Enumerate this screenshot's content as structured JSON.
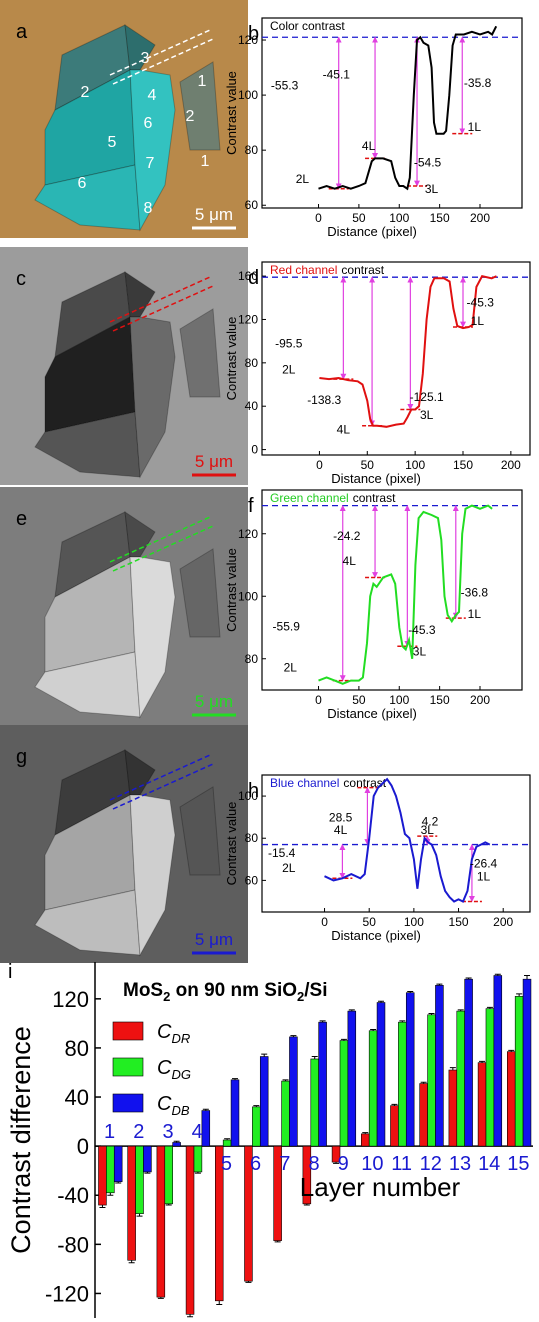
{
  "images": [
    {
      "label": "a",
      "scale_bar": "5 μm",
      "layer_labels": [
        "3",
        "2",
        "4",
        "1",
        "6",
        "2",
        "5",
        "7",
        "1",
        "6",
        "8"
      ]
    },
    {
      "label": "c",
      "scale_bar": "5 μm"
    },
    {
      "label": "e",
      "scale_bar": "5 μm"
    },
    {
      "label": "g",
      "scale_bar": "5 μm"
    }
  ],
  "chart_data": [
    {
      "type": "line",
      "panel": "b",
      "title_parts": [
        {
          "text": "Color contrast"
        }
      ],
      "color": "#000000",
      "xlabel": "Distance (pixel)",
      "ylabel": "Contrast value",
      "x": [
        0,
        10,
        20,
        30,
        40,
        50,
        58,
        62,
        66,
        70,
        80,
        90,
        95,
        100,
        105,
        110,
        113,
        118,
        122,
        126,
        130,
        136,
        140,
        143,
        146,
        150,
        155,
        158,
        162,
        166,
        170,
        180,
        190,
        200,
        210,
        215,
        220
      ],
      "values": [
        66,
        67,
        66,
        67,
        66,
        67,
        68,
        72,
        76,
        77,
        77,
        76,
        70,
        67,
        67,
        66,
        70,
        100,
        120,
        121,
        119,
        118,
        110,
        90,
        86,
        86,
        86,
        87,
        100,
        118,
        122,
        122,
        123,
        122,
        123,
        122,
        125
      ],
      "reference": 121,
      "xlim": [
        -70,
        252
      ],
      "ylim": [
        59,
        128
      ],
      "xticks": [
        0,
        50,
        100,
        150,
        200
      ],
      "yticks": [
        60,
        80,
        100,
        120
      ],
      "annotations": [
        "-55.3",
        "-45.1",
        "4L",
        "2L",
        "-54.5",
        "3L",
        "-35.8",
        "1L"
      ]
    },
    {
      "type": "line",
      "panel": "d",
      "title_parts": [
        {
          "text": "Red channel",
          "color": "#e01010"
        },
        {
          "text": "contrast"
        }
      ],
      "color": "#e01010",
      "xlabel": "Distance (pixel)",
      "ylabel": "Contrast value",
      "x": [
        0,
        10,
        20,
        30,
        40,
        45,
        50,
        53,
        56,
        60,
        70,
        80,
        88,
        92,
        96,
        100,
        104,
        108,
        112,
        116,
        120,
        130,
        136,
        140,
        144,
        150,
        156,
        160,
        164,
        170,
        180,
        185
      ],
      "values": [
        66,
        65,
        66,
        64,
        63,
        60,
        45,
        28,
        22,
        22,
        21,
        23,
        24,
        30,
        37,
        37,
        40,
        70,
        120,
        150,
        158,
        158,
        155,
        130,
        114,
        112,
        113,
        115,
        150,
        160,
        158,
        160
      ],
      "reference": 159,
      "xlim": [
        -60,
        220
      ],
      "ylim": [
        -5,
        173
      ],
      "xticks": [
        0,
        50,
        100,
        150,
        200
      ],
      "yticks": [
        0,
        40,
        80,
        120,
        160
      ],
      "annotations": [
        "-95.5",
        "2L",
        "-138.3",
        "4L",
        "-125.1",
        "3L",
        "-45.3",
        "1L"
      ]
    },
    {
      "type": "line",
      "panel": "f",
      "title_parts": [
        {
          "text": "Green channel",
          "color": "#22cc22"
        },
        {
          "text": "contrast"
        }
      ],
      "color": "#22dd22",
      "xlabel": "Distance (pixel)",
      "ylabel": "Contrast value",
      "x": [
        0,
        10,
        20,
        30,
        40,
        50,
        55,
        60,
        64,
        68,
        72,
        80,
        90,
        95,
        100,
        104,
        108,
        112,
        116,
        120,
        124,
        130,
        140,
        148,
        152,
        156,
        160,
        165,
        170,
        174,
        178,
        182,
        190,
        200,
        210,
        215
      ],
      "values": [
        73,
        74,
        73,
        72,
        73,
        73,
        74,
        85,
        100,
        104,
        103,
        106,
        107,
        104,
        90,
        84,
        83,
        86,
        80,
        110,
        125,
        127,
        126,
        125,
        118,
        100,
        94,
        92,
        94,
        95,
        120,
        128,
        129,
        128,
        129,
        128
      ],
      "reference": 129,
      "xlim": [
        -70,
        252
      ],
      "ylim": [
        70,
        134
      ],
      "xticks": [
        0,
        50,
        100,
        150,
        200
      ],
      "yticks": [
        80,
        100,
        120
      ],
      "annotations": [
        "-55.9",
        "2L",
        "-24.2",
        "4L",
        "-45.3",
        "3L",
        "-36.8",
        "1L"
      ]
    },
    {
      "type": "line",
      "panel": "h",
      "title_parts": [
        {
          "text": "Blue channel",
          "color": "#1a1ad0"
        },
        {
          "text": "contrast"
        }
      ],
      "color": "#1a1ad0",
      "xlabel": "Distance (pixel)",
      "ylabel": "Contrast value",
      "x": [
        0,
        10,
        20,
        30,
        40,
        45,
        50,
        55,
        60,
        65,
        70,
        75,
        80,
        85,
        90,
        95,
        100,
        104,
        108,
        112,
        116,
        120,
        125,
        130,
        135,
        140,
        145,
        150,
        155,
        160,
        165,
        170,
        175,
        180,
        185
      ],
      "values": [
        62,
        60,
        61,
        63,
        61,
        63,
        80,
        100,
        104,
        106,
        108,
        105,
        100,
        92,
        82,
        80,
        70,
        56,
        70,
        80,
        78,
        77,
        72,
        62,
        55,
        52,
        50,
        51,
        50,
        55,
        70,
        76,
        77,
        78,
        77
      ],
      "reference": 77,
      "xlim": [
        -70,
        230
      ],
      "ylim": [
        45,
        110
      ],
      "xticks": [
        0,
        50,
        100,
        150,
        200
      ],
      "yticks": [
        60,
        80,
        100
      ],
      "annotations": [
        "-15.4",
        "2L",
        "28.5",
        "4L",
        "4.2",
        "3L",
        "-26.4",
        "1L"
      ]
    },
    {
      "type": "bar",
      "panel": "i",
      "title_parts": [
        {
          "text": "MoS"
        },
        {
          "text": "2",
          "sub": true
        },
        {
          "text": " on 90 nm SiO"
        },
        {
          "text": "2",
          "sub": true
        },
        {
          "text": "/Si"
        }
      ],
      "xlabel": "Layer number",
      "ylabel": "Contrast difference",
      "categories": [
        "1",
        "2",
        "3",
        "4",
        "5",
        "6",
        "7",
        "8",
        "9",
        "10",
        "11",
        "12",
        "13",
        "14",
        "15"
      ],
      "series": [
        {
          "name": "C",
          "subscript": "DR",
          "color": "#ee1111",
          "values": [
            -48,
            -93,
            -123,
            -137,
            -126,
            -110,
            -77,
            -47,
            -13,
            10,
            33,
            51,
            62,
            68,
            77
          ],
          "errors": [
            2,
            2,
            1,
            2,
            3,
            1,
            1,
            1,
            1,
            1,
            1,
            1,
            2,
            1,
            1
          ]
        },
        {
          "name": "C",
          "subscript": "DG",
          "color": "#22ee22",
          "values": [
            -38,
            -55,
            -47,
            -21,
            5,
            32,
            53,
            71,
            86,
            94,
            101,
            107,
            110,
            112,
            122
          ],
          "errors": [
            2,
            2,
            1,
            1,
            1,
            1,
            1,
            2,
            1,
            1,
            1,
            1,
            1,
            1,
            2
          ]
        },
        {
          "name": "C",
          "subscript": "DB",
          "color": "#1111ee",
          "values": [
            -29,
            -21,
            3,
            29,
            54,
            73,
            89,
            101,
            110,
            117,
            125,
            131,
            136,
            139,
            136
          ],
          "errors": [
            1,
            1,
            1,
            1,
            1,
            2,
            1,
            1,
            1,
            1,
            1,
            1,
            1,
            1,
            3
          ]
        }
      ],
      "ylim": [
        -140,
        150
      ],
      "yticks": [
        -120,
        -80,
        -40,
        0,
        40,
        80,
        120
      ]
    }
  ]
}
